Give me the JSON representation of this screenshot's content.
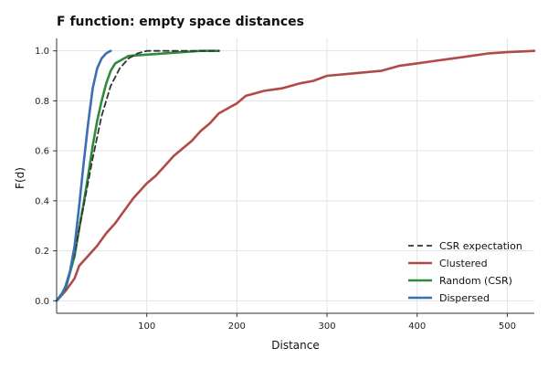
{
  "chart_data": {
    "type": "line",
    "title": "F function: empty space distances",
    "xlabel": "Distance",
    "ylabel": "F(d)",
    "xlim": [
      0,
      530
    ],
    "ylim": [
      -0.05,
      1.05
    ],
    "x_ticks": [
      100,
      200,
      300,
      400,
      500
    ],
    "y_ticks": [
      0.0,
      0.2,
      0.4,
      0.6,
      0.8,
      1.0
    ],
    "x_tick_labels": [
      "100",
      "200",
      "300",
      "400",
      "500"
    ],
    "y_tick_labels": [
      "0.0",
      "0.2",
      "0.4",
      "0.6",
      "0.8",
      "1.0"
    ],
    "grid": true,
    "legend_position": "bottom-right",
    "series": [
      {
        "name": "CSR expectation",
        "color": "#333333",
        "dashed": true,
        "points": [
          [
            0,
            0.0
          ],
          [
            10,
            0.05
          ],
          [
            20,
            0.19
          ],
          [
            30,
            0.38
          ],
          [
            40,
            0.57
          ],
          [
            50,
            0.74
          ],
          [
            60,
            0.86
          ],
          [
            70,
            0.93
          ],
          [
            80,
            0.97
          ],
          [
            90,
            0.99
          ],
          [
            100,
            1.0
          ],
          [
            110,
            1.0
          ],
          [
            120,
            1.0
          ],
          [
            140,
            1.0
          ],
          [
            160,
            1.0
          ],
          [
            180,
            1.0
          ]
        ]
      },
      {
        "name": "Clustered",
        "color": "#b04a4a",
        "dashed": false,
        "points": [
          [
            0,
            0.0
          ],
          [
            10,
            0.04
          ],
          [
            20,
            0.09
          ],
          [
            25,
            0.14
          ],
          [
            35,
            0.18
          ],
          [
            45,
            0.22
          ],
          [
            55,
            0.27
          ],
          [
            65,
            0.31
          ],
          [
            75,
            0.36
          ],
          [
            85,
            0.41
          ],
          [
            100,
            0.47
          ],
          [
            110,
            0.5
          ],
          [
            120,
            0.54
          ],
          [
            130,
            0.58
          ],
          [
            140,
            0.61
          ],
          [
            150,
            0.64
          ],
          [
            160,
            0.68
          ],
          [
            170,
            0.71
          ],
          [
            180,
            0.75
          ],
          [
            190,
            0.77
          ],
          [
            200,
            0.79
          ],
          [
            210,
            0.82
          ],
          [
            220,
            0.83
          ],
          [
            230,
            0.84
          ],
          [
            250,
            0.85
          ],
          [
            270,
            0.87
          ],
          [
            285,
            0.88
          ],
          [
            300,
            0.9
          ],
          [
            330,
            0.91
          ],
          [
            360,
            0.92
          ],
          [
            380,
            0.94
          ],
          [
            400,
            0.95
          ],
          [
            420,
            0.96
          ],
          [
            440,
            0.97
          ],
          [
            460,
            0.98
          ],
          [
            480,
            0.99
          ],
          [
            500,
            0.995
          ],
          [
            520,
            0.998
          ],
          [
            530,
            1.0
          ]
        ]
      },
      {
        "name": "Random (CSR)",
        "color": "#2e8b3e",
        "dashed": false,
        "points": [
          [
            0,
            0.0
          ],
          [
            10,
            0.05
          ],
          [
            20,
            0.18
          ],
          [
            25,
            0.29
          ],
          [
            30,
            0.39
          ],
          [
            35,
            0.5
          ],
          [
            40,
            0.62
          ],
          [
            45,
            0.72
          ],
          [
            50,
            0.8
          ],
          [
            55,
            0.87
          ],
          [
            60,
            0.92
          ],
          [
            65,
            0.95
          ],
          [
            70,
            0.96
          ],
          [
            80,
            0.98
          ],
          [
            100,
            0.985
          ],
          [
            120,
            0.99
          ],
          [
            140,
            0.995
          ],
          [
            160,
            1.0
          ],
          [
            180,
            1.0
          ]
        ]
      },
      {
        "name": "Dispersed",
        "color": "#3a6eb5",
        "dashed": false,
        "points": [
          [
            0,
            0.0
          ],
          [
            5,
            0.02
          ],
          [
            10,
            0.06
          ],
          [
            15,
            0.12
          ],
          [
            20,
            0.22
          ],
          [
            25,
            0.38
          ],
          [
            30,
            0.55
          ],
          [
            35,
            0.71
          ],
          [
            40,
            0.85
          ],
          [
            45,
            0.93
          ],
          [
            50,
            0.97
          ],
          [
            55,
            0.99
          ],
          [
            60,
            1.0
          ]
        ]
      }
    ]
  }
}
